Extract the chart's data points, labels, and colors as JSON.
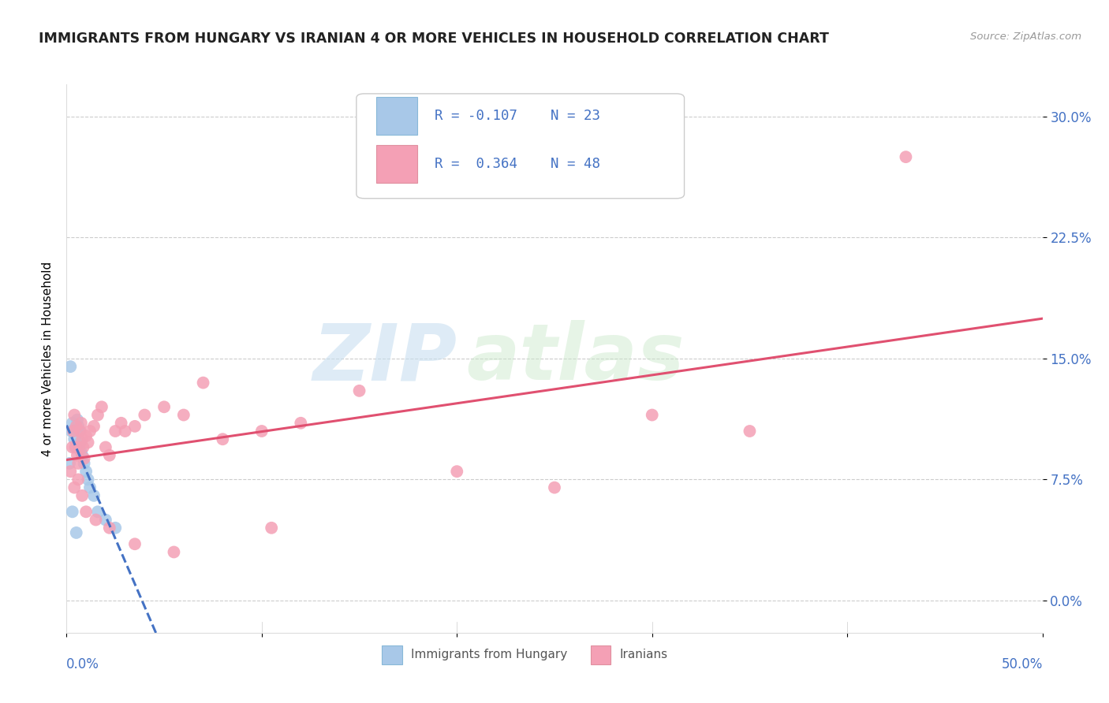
{
  "title": "IMMIGRANTS FROM HUNGARY VS IRANIAN 4 OR MORE VEHICLES IN HOUSEHOLD CORRELATION CHART",
  "source": "Source: ZipAtlas.com",
  "ylabel": "4 or more Vehicles in Household",
  "legend_label1": "Immigrants from Hungary",
  "legend_label2": "Iranians",
  "color_hungary": "#a8c8e8",
  "color_iran": "#f4a0b5",
  "trendline_hungary_color": "#4472c4",
  "trendline_iran_color": "#e05070",
  "xlim": [
    0.0,
    50.0
  ],
  "ylim": [
    -2.0,
    32.0
  ],
  "ytick_vals": [
    0.0,
    7.5,
    15.0,
    22.5,
    30.0
  ],
  "xtick_vals": [
    0.0,
    10.0,
    20.0,
    30.0,
    40.0,
    50.0
  ],
  "hungary_x": [
    0.15,
    0.2,
    0.25,
    0.3,
    0.35,
    0.4,
    0.5,
    0.55,
    0.6,
    0.65,
    0.7,
    0.75,
    0.8,
    0.9,
    1.0,
    1.1,
    1.2,
    1.4,
    1.6,
    2.0,
    2.5,
    0.3,
    0.5
  ],
  "hungary_y": [
    8.5,
    14.5,
    10.5,
    11.0,
    10.5,
    10.0,
    9.5,
    11.2,
    10.8,
    10.5,
    9.8,
    9.2,
    9.0,
    8.5,
    8.0,
    7.5,
    7.0,
    6.5,
    5.5,
    5.0,
    4.5,
    5.5,
    4.2
  ],
  "iran_x": [
    0.2,
    0.3,
    0.35,
    0.4,
    0.45,
    0.5,
    0.55,
    0.6,
    0.65,
    0.7,
    0.75,
    0.8,
    0.85,
    0.9,
    1.0,
    1.1,
    1.2,
    1.4,
    1.6,
    1.8,
    2.0,
    2.2,
    2.5,
    2.8,
    3.0,
    3.5,
    4.0,
    5.0,
    6.0,
    7.0,
    8.0,
    10.0,
    12.0,
    15.0,
    20.0,
    25.0,
    30.0,
    35.0,
    43.0,
    0.4,
    0.6,
    0.8,
    1.0,
    1.5,
    2.2,
    3.5,
    5.5,
    10.5
  ],
  "iran_y": [
    8.0,
    9.5,
    10.5,
    11.5,
    9.5,
    10.8,
    9.0,
    8.5,
    9.5,
    10.5,
    11.0,
    10.0,
    9.5,
    8.8,
    10.2,
    9.8,
    10.5,
    10.8,
    11.5,
    12.0,
    9.5,
    9.0,
    10.5,
    11.0,
    10.5,
    10.8,
    11.5,
    12.0,
    11.5,
    13.5,
    10.0,
    10.5,
    11.0,
    13.0,
    8.0,
    7.0,
    11.5,
    10.5,
    27.5,
    7.0,
    7.5,
    6.5,
    5.5,
    5.0,
    4.5,
    3.5,
    3.0,
    4.5
  ]
}
